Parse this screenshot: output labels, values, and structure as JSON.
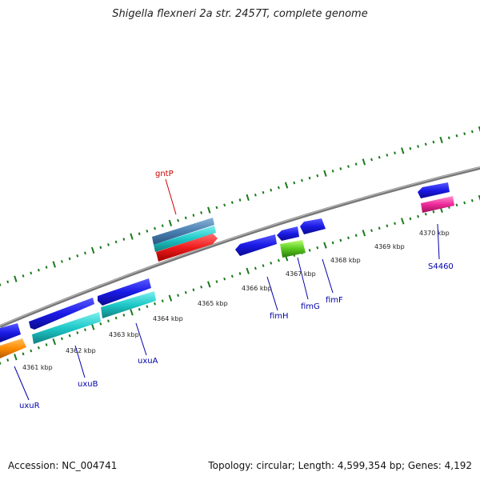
{
  "header": {
    "title": "Shigella flexneri 2a str. 2457T, complete genome"
  },
  "footer": {
    "accession": "Accession: NC_004741",
    "summary": "Topology: circular; Length: 4,599,354 bp; Genes: 4,192"
  },
  "ticks": [
    {
      "label": "4361 kbp"
    },
    {
      "label": "4362 kbp"
    },
    {
      "label": "4363 kbp"
    },
    {
      "label": "4364 kbp"
    },
    {
      "label": "4365 kbp"
    },
    {
      "label": "4366 kbp"
    },
    {
      "label": "4367 kbp"
    },
    {
      "label": "4368 kbp"
    },
    {
      "label": "4369 kbp"
    },
    {
      "label": "4370 kbp"
    }
  ],
  "genes": [
    {
      "name": "gntP",
      "color": "#cc0000"
    },
    {
      "name": "uxuR",
      "color": "#0000aa"
    },
    {
      "name": "uxuB",
      "color": "#0000aa"
    },
    {
      "name": "uxuA",
      "color": "#0000aa"
    },
    {
      "name": "fimH",
      "color": "#0000aa"
    },
    {
      "name": "fimG",
      "color": "#0000aa"
    },
    {
      "name": "fimF",
      "color": "#0000aa"
    },
    {
      "name": "S4460",
      "color": "#0000aa"
    }
  ],
  "colors": {
    "backbone": "#8a8a8a",
    "tick": "#1a7a1a",
    "blue": "#1a1ae6",
    "cyan": "#1ec8c8",
    "red": "#ee1c1c",
    "steel": "#4a7fb0",
    "orange": "#ff8c00",
    "green": "#5ac81e",
    "pink": "#ee2a9a"
  }
}
